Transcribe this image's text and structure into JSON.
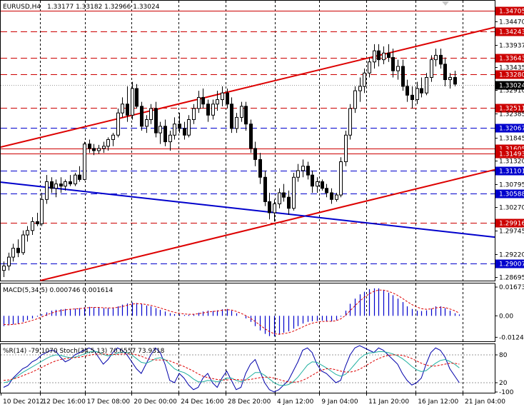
{
  "chart_data": {
    "type": "candlestick",
    "header": {
      "symbol": "EURUSD,H4",
      "ohlc": "1.33177 1.33182 1.32966 1.33024"
    },
    "price_range": [
      1.2862,
      1.3493
    ],
    "price_ticks": [
      "1.34470",
      "1.33937",
      "1.33435",
      "1.32910",
      "1.32385",
      "1.31845",
      "1.31320",
      "1.30795",
      "1.30270",
      "1.29745",
      "1.29220",
      "1.28695"
    ],
    "current_price": "1.33024",
    "current_price_value": 1.33024,
    "levels": [
      {
        "price": 1.34705,
        "label": "1.34705",
        "color": "#cc0000",
        "style": "solid"
      },
      {
        "price": 1.34243,
        "label": "1.34243",
        "color": "#cc0000",
        "style": "dash"
      },
      {
        "price": 1.33643,
        "label": "1.33643",
        "color": "#cc0000",
        "style": "dash"
      },
      {
        "price": 1.3328,
        "label": "1.33280",
        "color": "#cc0000",
        "style": "dash"
      },
      {
        "price": 1.32511,
        "label": "1.32511",
        "color": "#cc0000",
        "style": "dash"
      },
      {
        "price": 1.32067,
        "label": "1.32067",
        "color": "#0000cc",
        "style": "dash"
      },
      {
        "price": 1.31605,
        "label": "1.31605",
        "color": "#cc0000",
        "style": "solid"
      },
      {
        "price": 1.31493,
        "label": "1.31493",
        "color": "#cc0000",
        "style": "solid"
      },
      {
        "price": 1.31101,
        "label": "1.31101",
        "color": "#0000cc",
        "style": "dash"
      },
      {
        "price": 1.30588,
        "label": "1.30588",
        "color": "#0000cc",
        "style": "dash"
      },
      {
        "price": 1.29916,
        "label": "1.29916",
        "color": "#cc0000",
        "style": "dash"
      },
      {
        "price": 1.29007,
        "label": "1.29007",
        "color": "#0000cc",
        "style": "dash"
      }
    ],
    "trendlines": [
      {
        "color": "#dd0000",
        "from": [
          0,
          1.3163
        ],
        "to": [
          1,
          1.3433
        ]
      },
      {
        "color": "#dd0000",
        "from": [
          0.08,
          1.2862
        ],
        "to": [
          1,
          1.3112
        ]
      },
      {
        "color": "#0000cc",
        "from": [
          0,
          1.3084
        ],
        "to": [
          1,
          1.296
        ]
      }
    ],
    "candles": [
      [
        1.2885,
        1.2905,
        1.287,
        1.2895
      ],
      [
        1.2895,
        1.2925,
        1.2885,
        1.2915
      ],
      [
        1.2915,
        1.2945,
        1.2905,
        1.2935
      ],
      [
        1.2935,
        1.2955,
        1.2915,
        1.2925
      ],
      [
        1.2925,
        1.2975,
        1.292,
        1.2965
      ],
      [
        1.2965,
        1.2985,
        1.295,
        1.2975
      ],
      [
        1.2975,
        1.3005,
        1.2965,
        1.2995
      ],
      [
        1.2995,
        1.3015,
        1.2985,
        1.299
      ],
      [
        1.299,
        1.306,
        1.2985,
        1.3045
      ],
      [
        1.3045,
        1.31,
        1.3035,
        1.3085
      ],
      [
        1.3085,
        1.3095,
        1.306,
        1.307
      ],
      [
        1.307,
        1.309,
        1.305,
        1.308
      ],
      [
        1.308,
        1.3095,
        1.306,
        1.3075
      ],
      [
        1.3075,
        1.309,
        1.3065,
        1.3085
      ],
      [
        1.3085,
        1.31,
        1.3075,
        1.308
      ],
      [
        1.308,
        1.3105,
        1.3075,
        1.31
      ],
      [
        1.31,
        1.312,
        1.3085,
        1.309
      ],
      [
        1.309,
        1.3175,
        1.3088,
        1.317
      ],
      [
        1.317,
        1.318,
        1.315,
        1.316
      ],
      [
        1.316,
        1.317,
        1.3145,
        1.3155
      ],
      [
        1.3155,
        1.3168,
        1.3148,
        1.316
      ],
      [
        1.316,
        1.3175,
        1.315,
        1.3165
      ],
      [
        1.3165,
        1.3185,
        1.3155,
        1.318
      ],
      [
        1.318,
        1.3195,
        1.3165,
        1.319
      ],
      [
        1.319,
        1.325,
        1.3185,
        1.324
      ],
      [
        1.324,
        1.3275,
        1.323,
        1.326
      ],
      [
        1.326,
        1.33,
        1.322,
        1.3235
      ],
      [
        1.3235,
        1.331,
        1.3225,
        1.3295
      ],
      [
        1.3295,
        1.3305,
        1.325,
        1.3255
      ],
      [
        1.3255,
        1.3265,
        1.32,
        1.321
      ],
      [
        1.321,
        1.3235,
        1.3195,
        1.3225
      ],
      [
        1.3225,
        1.326,
        1.3215,
        1.325
      ],
      [
        1.325,
        1.3265,
        1.3185,
        1.3195
      ],
      [
        1.3195,
        1.322,
        1.317,
        1.321
      ],
      [
        1.321,
        1.3225,
        1.3165,
        1.3175
      ],
      [
        1.3175,
        1.32,
        1.3155,
        1.319
      ],
      [
        1.319,
        1.323,
        1.318,
        1.3215
      ],
      [
        1.3215,
        1.324,
        1.3195,
        1.3205
      ],
      [
        1.3205,
        1.322,
        1.318,
        1.319
      ],
      [
        1.319,
        1.3235,
        1.3185,
        1.3225
      ],
      [
        1.3225,
        1.326,
        1.3215,
        1.325
      ],
      [
        1.325,
        1.329,
        1.324,
        1.3275
      ],
      [
        1.3275,
        1.3295,
        1.325,
        1.326
      ],
      [
        1.326,
        1.327,
        1.322,
        1.3235
      ],
      [
        1.3235,
        1.327,
        1.3225,
        1.326
      ],
      [
        1.326,
        1.329,
        1.3245,
        1.327
      ],
      [
        1.327,
        1.33,
        1.3255,
        1.3285
      ],
      [
        1.3285,
        1.3295,
        1.325,
        1.326
      ],
      [
        1.326,
        1.3275,
        1.3195,
        1.3205
      ],
      [
        1.3205,
        1.324,
        1.3195,
        1.323
      ],
      [
        1.323,
        1.3265,
        1.322,
        1.3255
      ],
      [
        1.3255,
        1.3265,
        1.32,
        1.3215
      ],
      [
        1.3215,
        1.3225,
        1.315,
        1.316
      ],
      [
        1.316,
        1.3175,
        1.312,
        1.3135
      ],
      [
        1.3135,
        1.315,
        1.308,
        1.3095
      ],
      [
        1.3095,
        1.311,
        1.303,
        1.304
      ],
      [
        1.304,
        1.306,
        1.3,
        1.3015
      ],
      [
        1.3015,
        1.3045,
        1.2995,
        1.3035
      ],
      [
        1.3035,
        1.307,
        1.3025,
        1.306
      ],
      [
        1.306,
        1.308,
        1.304,
        1.305
      ],
      [
        1.305,
        1.3065,
        1.301,
        1.3025
      ],
      [
        1.3025,
        1.3105,
        1.302,
        1.3095
      ],
      [
        1.3095,
        1.3125,
        1.3085,
        1.311
      ],
      [
        1.311,
        1.3135,
        1.3095,
        1.312
      ],
      [
        1.312,
        1.313,
        1.309,
        1.31
      ],
      [
        1.31,
        1.311,
        1.306,
        1.3075
      ],
      [
        1.3075,
        1.3095,
        1.306,
        1.3085
      ],
      [
        1.3085,
        1.309,
        1.3065,
        1.307
      ],
      [
        1.307,
        1.308,
        1.305,
        1.306
      ],
      [
        1.306,
        1.307,
        1.3035,
        1.3045
      ],
      [
        1.3045,
        1.306,
        1.304,
        1.3055
      ],
      [
        1.3055,
        1.314,
        1.305,
        1.313
      ],
      [
        1.313,
        1.32,
        1.312,
        1.319
      ],
      [
        1.319,
        1.326,
        1.318,
        1.325
      ],
      [
        1.325,
        1.33,
        1.324,
        1.329
      ],
      [
        1.329,
        1.332,
        1.3265,
        1.33
      ],
      [
        1.33,
        1.334,
        1.3285,
        1.333
      ],
      [
        1.333,
        1.3365,
        1.332,
        1.3355
      ],
      [
        1.3355,
        1.3395,
        1.334,
        1.338
      ],
      [
        1.338,
        1.3395,
        1.3345,
        1.336
      ],
      [
        1.336,
        1.339,
        1.335,
        1.3375
      ],
      [
        1.3375,
        1.3395,
        1.3355,
        1.3365
      ],
      [
        1.3365,
        1.3385,
        1.332,
        1.3335
      ],
      [
        1.3335,
        1.336,
        1.3315,
        1.3345
      ],
      [
        1.3345,
        1.336,
        1.329,
        1.33
      ],
      [
        1.33,
        1.3315,
        1.3265,
        1.328
      ],
      [
        1.328,
        1.33,
        1.325,
        1.327
      ],
      [
        1.327,
        1.331,
        1.326,
        1.3295
      ],
      [
        1.3295,
        1.332,
        1.3275,
        1.3285
      ],
      [
        1.3285,
        1.333,
        1.328,
        1.332
      ],
      [
        1.332,
        1.337,
        1.331,
        1.336
      ],
      [
        1.336,
        1.3385,
        1.3345,
        1.337
      ],
      [
        1.337,
        1.3385,
        1.334,
        1.335
      ],
      [
        1.335,
        1.3365,
        1.33,
        1.3315
      ],
      [
        1.3315,
        1.333,
        1.3295,
        1.332
      ],
      [
        1.332,
        1.3335,
        1.33,
        1.3305
      ]
    ],
    "macd": {
      "label": "MACD(5,34,5) 0.000746 0.001614",
      "range": [
        -0.014,
        0.018
      ],
      "ticks": [
        "0.016731",
        "0.00",
        "-0.012494"
      ],
      "hist": [
        -0.006,
        -0.0055,
        -0.005,
        -0.0045,
        -0.0035,
        -0.0025,
        -0.0015,
        -0.0005,
        0.001,
        0.002,
        0.003,
        0.0035,
        0.0038,
        0.004,
        0.004,
        0.0042,
        0.0045,
        0.005,
        0.0052,
        0.005,
        0.0048,
        0.0045,
        0.0045,
        0.0048,
        0.0055,
        0.0065,
        0.0072,
        0.0078,
        0.0075,
        0.0068,
        0.006,
        0.0055,
        0.0045,
        0.0035,
        0.0025,
        0.0015,
        0.001,
        0.0008,
        0.0005,
        0.0006,
        0.001,
        0.0018,
        0.0025,
        0.003,
        0.0028,
        0.0032,
        0.0038,
        0.004,
        0.003,
        0.0015,
        0.0,
        -0.0015,
        -0.0035,
        -0.006,
        -0.0085,
        -0.0105,
        -0.0118,
        -0.012,
        -0.011,
        -0.0098,
        -0.009,
        -0.0075,
        -0.006,
        -0.0045,
        -0.0035,
        -0.0032,
        -0.003,
        -0.0028,
        -0.003,
        -0.0032,
        -0.0025,
        -0.0005,
        0.003,
        0.007,
        0.01,
        0.0125,
        0.014,
        0.0155,
        0.016,
        0.016,
        0.015,
        0.0135,
        0.012,
        0.01,
        0.008,
        0.0055,
        0.004,
        0.003,
        0.0028,
        0.0032,
        0.0042,
        0.0055,
        0.0055,
        0.0045,
        0.003,
        0.0015,
        0.0008
      ],
      "signal": [
        -0.005,
        -0.0052,
        -0.005,
        -0.0047,
        -0.0042,
        -0.0035,
        -0.0027,
        -0.0018,
        -0.0007,
        0.0005,
        0.0015,
        0.0024,
        0.003,
        0.0035,
        0.0038,
        0.004,
        0.0042,
        0.0045,
        0.0048,
        0.0049,
        0.0049,
        0.0047,
        0.0046,
        0.0046,
        0.0049,
        0.0054,
        0.0061,
        0.0068,
        0.0071,
        0.007,
        0.0066,
        0.0061,
        0.0054,
        0.0046,
        0.0037,
        0.0028,
        0.002,
        0.0015,
        0.0011,
        0.0009,
        0.0009,
        0.0012,
        0.0017,
        0.0022,
        0.0025,
        0.0028,
        0.0032,
        0.0036,
        0.0034,
        0.0026,
        0.0015,
        0.0002,
        -0.0014,
        -0.0033,
        -0.0054,
        -0.0074,
        -0.0092,
        -0.0104,
        -0.0107,
        -0.0104,
        -0.0099,
        -0.009,
        -0.0078,
        -0.0065,
        -0.0052,
        -0.0043,
        -0.0037,
        -0.0033,
        -0.0032,
        -0.0032,
        -0.0029,
        -0.0018,
        0.0002,
        0.003,
        0.0058,
        0.0085,
        0.0108,
        0.0128,
        0.0142,
        0.015,
        0.015,
        0.0143,
        0.0133,
        0.0119,
        0.0102,
        0.0083,
        0.0066,
        0.0052,
        0.0042,
        0.0038,
        0.004,
        0.0046,
        0.005,
        0.0048,
        0.004,
        0.003,
        0.0016
      ]
    },
    "stoch": {
      "label": "%R(14) -79.1070 Stoch(34,5,13) 70.6557 73.9318",
      "ticks": [
        "80",
        "20",
        "-100"
      ],
      "wpr": [
        -90,
        -85,
        -70,
        -60,
        -50,
        -45,
        -35,
        -30,
        -20,
        -15,
        -10,
        -12,
        -25,
        -35,
        -30,
        -20,
        -15,
        -10,
        -5,
        -10,
        -25,
        -40,
        -30,
        -15,
        -5,
        -10,
        -20,
        -35,
        -50,
        -60,
        -40,
        -20,
        -5,
        -15,
        -40,
        -75,
        -80,
        -60,
        -70,
        -85,
        -95,
        -90,
        -70,
        -60,
        -80,
        -90,
        -70,
        -55,
        -75,
        -95,
        -90,
        -60,
        -40,
        -30,
        -55,
        -80,
        -95,
        -100,
        -95,
        -85,
        -75,
        -55,
        -35,
        -10,
        -5,
        -15,
        -40,
        -55,
        -60,
        -70,
        -80,
        -75,
        -45,
        -20,
        -5,
        0,
        -5,
        -10,
        -15,
        -5,
        -10,
        -20,
        -30,
        -40,
        -60,
        -75,
        -85,
        -80,
        -70,
        -40,
        -15,
        -5,
        -10,
        -25,
        -50,
        -65,
        -80
      ],
      "k": [
        -80,
        -78,
        -72,
        -65,
        -58,
        -52,
        -46,
        -40,
        -34,
        -28,
        -23,
        -20,
        -21,
        -24,
        -26,
        -25,
        -22,
        -18,
        -14,
        -12,
        -14,
        -19,
        -22,
        -20,
        -16,
        -14,
        -15,
        -20,
        -28,
        -36,
        -38,
        -34,
        -28,
        -26,
        -30,
        -40,
        -50,
        -55,
        -58,
        -64,
        -72,
        -78,
        -78,
        -75,
        -76,
        -78,
        -75,
        -70,
        -70,
        -75,
        -78,
        -74,
        -66,
        -58,
        -58,
        -64,
        -72,
        -80,
        -85,
        -86,
        -84,
        -78,
        -68,
        -55,
        -42,
        -35,
        -36,
        -42,
        -48,
        -55,
        -62,
        -66,
        -62,
        -52,
        -40,
        -28,
        -20,
        -16,
        -15,
        -13,
        -13,
        -15,
        -18,
        -22,
        -28,
        -36,
        -45,
        -52,
        -56,
        -54,
        -46,
        -38,
        -32,
        -30,
        -34,
        -40,
        -48
      ],
      "d": [
        -75,
        -74,
        -72,
        -69,
        -65,
        -61,
        -57,
        -52,
        -47,
        -42,
        -37,
        -33,
        -30,
        -28,
        -27,
        -26,
        -25,
        -23,
        -21,
        -19,
        -18,
        -18,
        -19,
        -19,
        -19,
        -18,
        -18,
        -18,
        -20,
        -23,
        -27,
        -30,
        -31,
        -31,
        -31,
        -33,
        -37,
        -41,
        -45,
        -50,
        -55,
        -61,
        -66,
        -69,
        -71,
        -73,
        -74,
        -74,
        -73,
        -73,
        -74,
        -74,
        -73,
        -71,
        -69,
        -68,
        -68,
        -70,
        -73,
        -76,
        -78,
        -79,
        -78,
        -75,
        -70,
        -64,
        -58,
        -53,
        -50,
        -50,
        -52,
        -55,
        -57,
        -57,
        -55,
        -51,
        -45,
        -39,
        -33,
        -28,
        -24,
        -21,
        -20,
        -20,
        -21,
        -24,
        -28,
        -33,
        -38,
        -42,
        -44,
        -44,
        -42,
        -40,
        -38,
        -38,
        -40
      ]
    },
    "time_labels": [
      {
        "label": "10 Dec 2012",
        "frac": 0.0
      },
      {
        "label": "12 Dec 16:00",
        "frac": 0.08
      },
      {
        "label": "17 Dec 08:00",
        "frac": 0.17
      },
      {
        "label": "20 Dec 00:00",
        "frac": 0.265
      },
      {
        "label": "24 Dec 16:00",
        "frac": 0.36
      },
      {
        "label": "28 Dec 20:00",
        "frac": 0.455
      },
      {
        "label": "4 Jan 12:00",
        "frac": 0.555
      },
      {
        "label": "9 Jan 04:00",
        "frac": 0.645
      },
      {
        "label": "11 Jan 20:00",
        "frac": 0.74
      },
      {
        "label": "16 Jan 12:00",
        "frac": 0.84
      },
      {
        "label": "21 Jan 04:00",
        "frac": 0.935
      }
    ]
  }
}
